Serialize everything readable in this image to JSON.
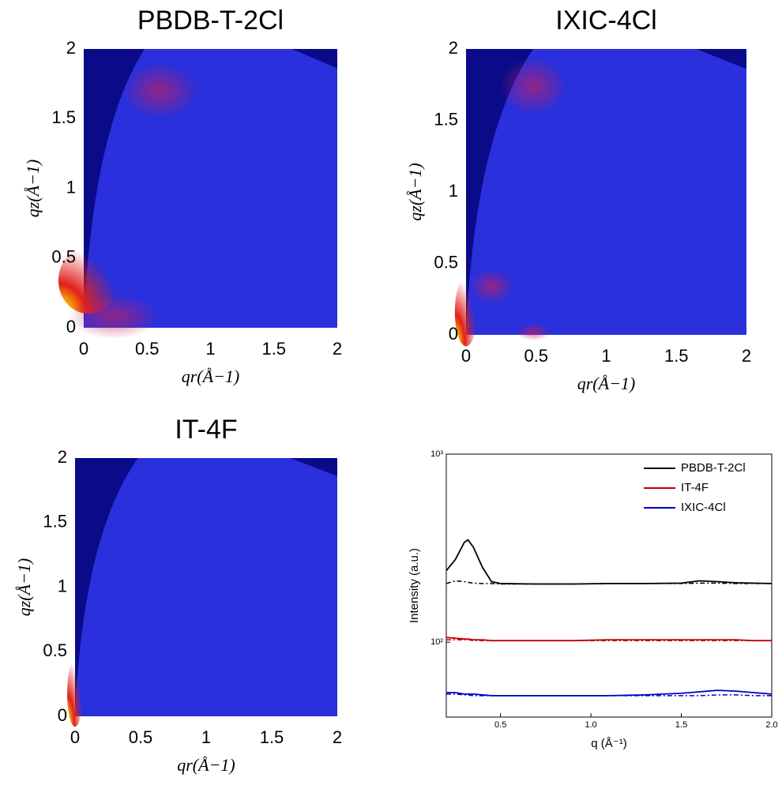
{
  "chart_data": [
    {
      "type": "image",
      "title": "PBDB-T-2Cl",
      "xlabel": "qr(Å−1)",
      "ylabel": "qz(Å−1)",
      "xlim": [
        0,
        2
      ],
      "ylim": [
        0,
        2
      ],
      "xticks": [
        0,
        0.5,
        1,
        1.5,
        2
      ],
      "yticks": [
        0,
        0.5,
        1,
        1.5,
        2
      ]
    },
    {
      "type": "image",
      "title": "IXIC-4Cl",
      "xlabel": "qr(Å−1)",
      "ylabel": "qz(Å−1)",
      "xlim": [
        0,
        2
      ],
      "ylim": [
        0,
        2
      ],
      "xticks": [
        0,
        0.5,
        1,
        1.5,
        2
      ],
      "yticks": [
        0,
        0.5,
        1,
        1.5,
        2
      ]
    },
    {
      "type": "image",
      "title": "IT-4F",
      "xlabel": "qr(Å−1)",
      "ylabel": "qz(Å−1)",
      "xlim": [
        0,
        2
      ],
      "ylim": [
        0,
        2
      ],
      "xticks": [
        0,
        0.5,
        1,
        1.5,
        2
      ],
      "yticks": [
        0,
        0.5,
        1,
        1.5,
        2
      ]
    },
    {
      "type": "line",
      "xlabel": "q (Å⁻¹)",
      "ylabel": "Intensity (a.u.)",
      "ylog": true,
      "xlim": [
        0.2,
        2.0
      ],
      "ylim": [
        40,
        1000
      ],
      "xticks": [
        {
          "value": 0.5,
          "label": "0.5"
        },
        {
          "value": 1.0,
          "label": "1.0"
        },
        {
          "value": 1.5,
          "label": "1.5"
        },
        {
          "value": 2.0,
          "label": "2.0"
        }
      ],
      "yticks": [
        {
          "value": 100,
          "label": "10²"
        },
        {
          "value": 1000,
          "label": "10³"
        }
      ],
      "legend": "upper right",
      "x": [
        0.2,
        0.25,
        0.3,
        0.32,
        0.35,
        0.4,
        0.45,
        0.5,
        0.7,
        0.9,
        1.1,
        1.3,
        1.5,
        1.6,
        1.7,
        1.8,
        1.9,
        2.0
      ],
      "series": [
        {
          "name": "PBDB-T-2Cl",
          "color": "#000000",
          "values": [
            240,
            275,
            340,
            350,
            320,
            250,
            210,
            205,
            204,
            204,
            205,
            205,
            206,
            212,
            210,
            207,
            206,
            205
          ]
        },
        {
          "name": "IT-4F",
          "color": "#c00000",
          "values": [
            106,
            105,
            104,
            104,
            103,
            103,
            102,
            102,
            102,
            102,
            103,
            103,
            103,
            103,
            103,
            103,
            102,
            102
          ]
        },
        {
          "name": "IXIC-4Cl",
          "color": "#0000c0",
          "values": [
            54,
            54,
            53,
            53,
            53,
            52.5,
            52,
            52,
            52,
            52,
            52,
            52.5,
            53.5,
            54.5,
            55.5,
            55,
            54,
            53
          ]
        },
        {
          "color": "#000000",
          "dashed": true,
          "values": [
            205,
            212,
            210,
            208,
            206,
            205,
            205,
            204,
            204,
            204,
            205,
            205,
            205,
            206,
            206,
            205,
            205,
            205
          ]
        },
        {
          "color": "#c00000",
          "dashed": true,
          "values": [
            103,
            103,
            103,
            103,
            102,
            102,
            102,
            102,
            102,
            102,
            102,
            102,
            102,
            102,
            102,
            102,
            102,
            102
          ]
        },
        {
          "color": "#0000c0",
          "dashed": true,
          "values": [
            53,
            53,
            52.5,
            52.5,
            52,
            52,
            52,
            52,
            52,
            52,
            52,
            52,
            52,
            52,
            52.5,
            52.5,
            52,
            52
          ]
        }
      ]
    }
  ]
}
